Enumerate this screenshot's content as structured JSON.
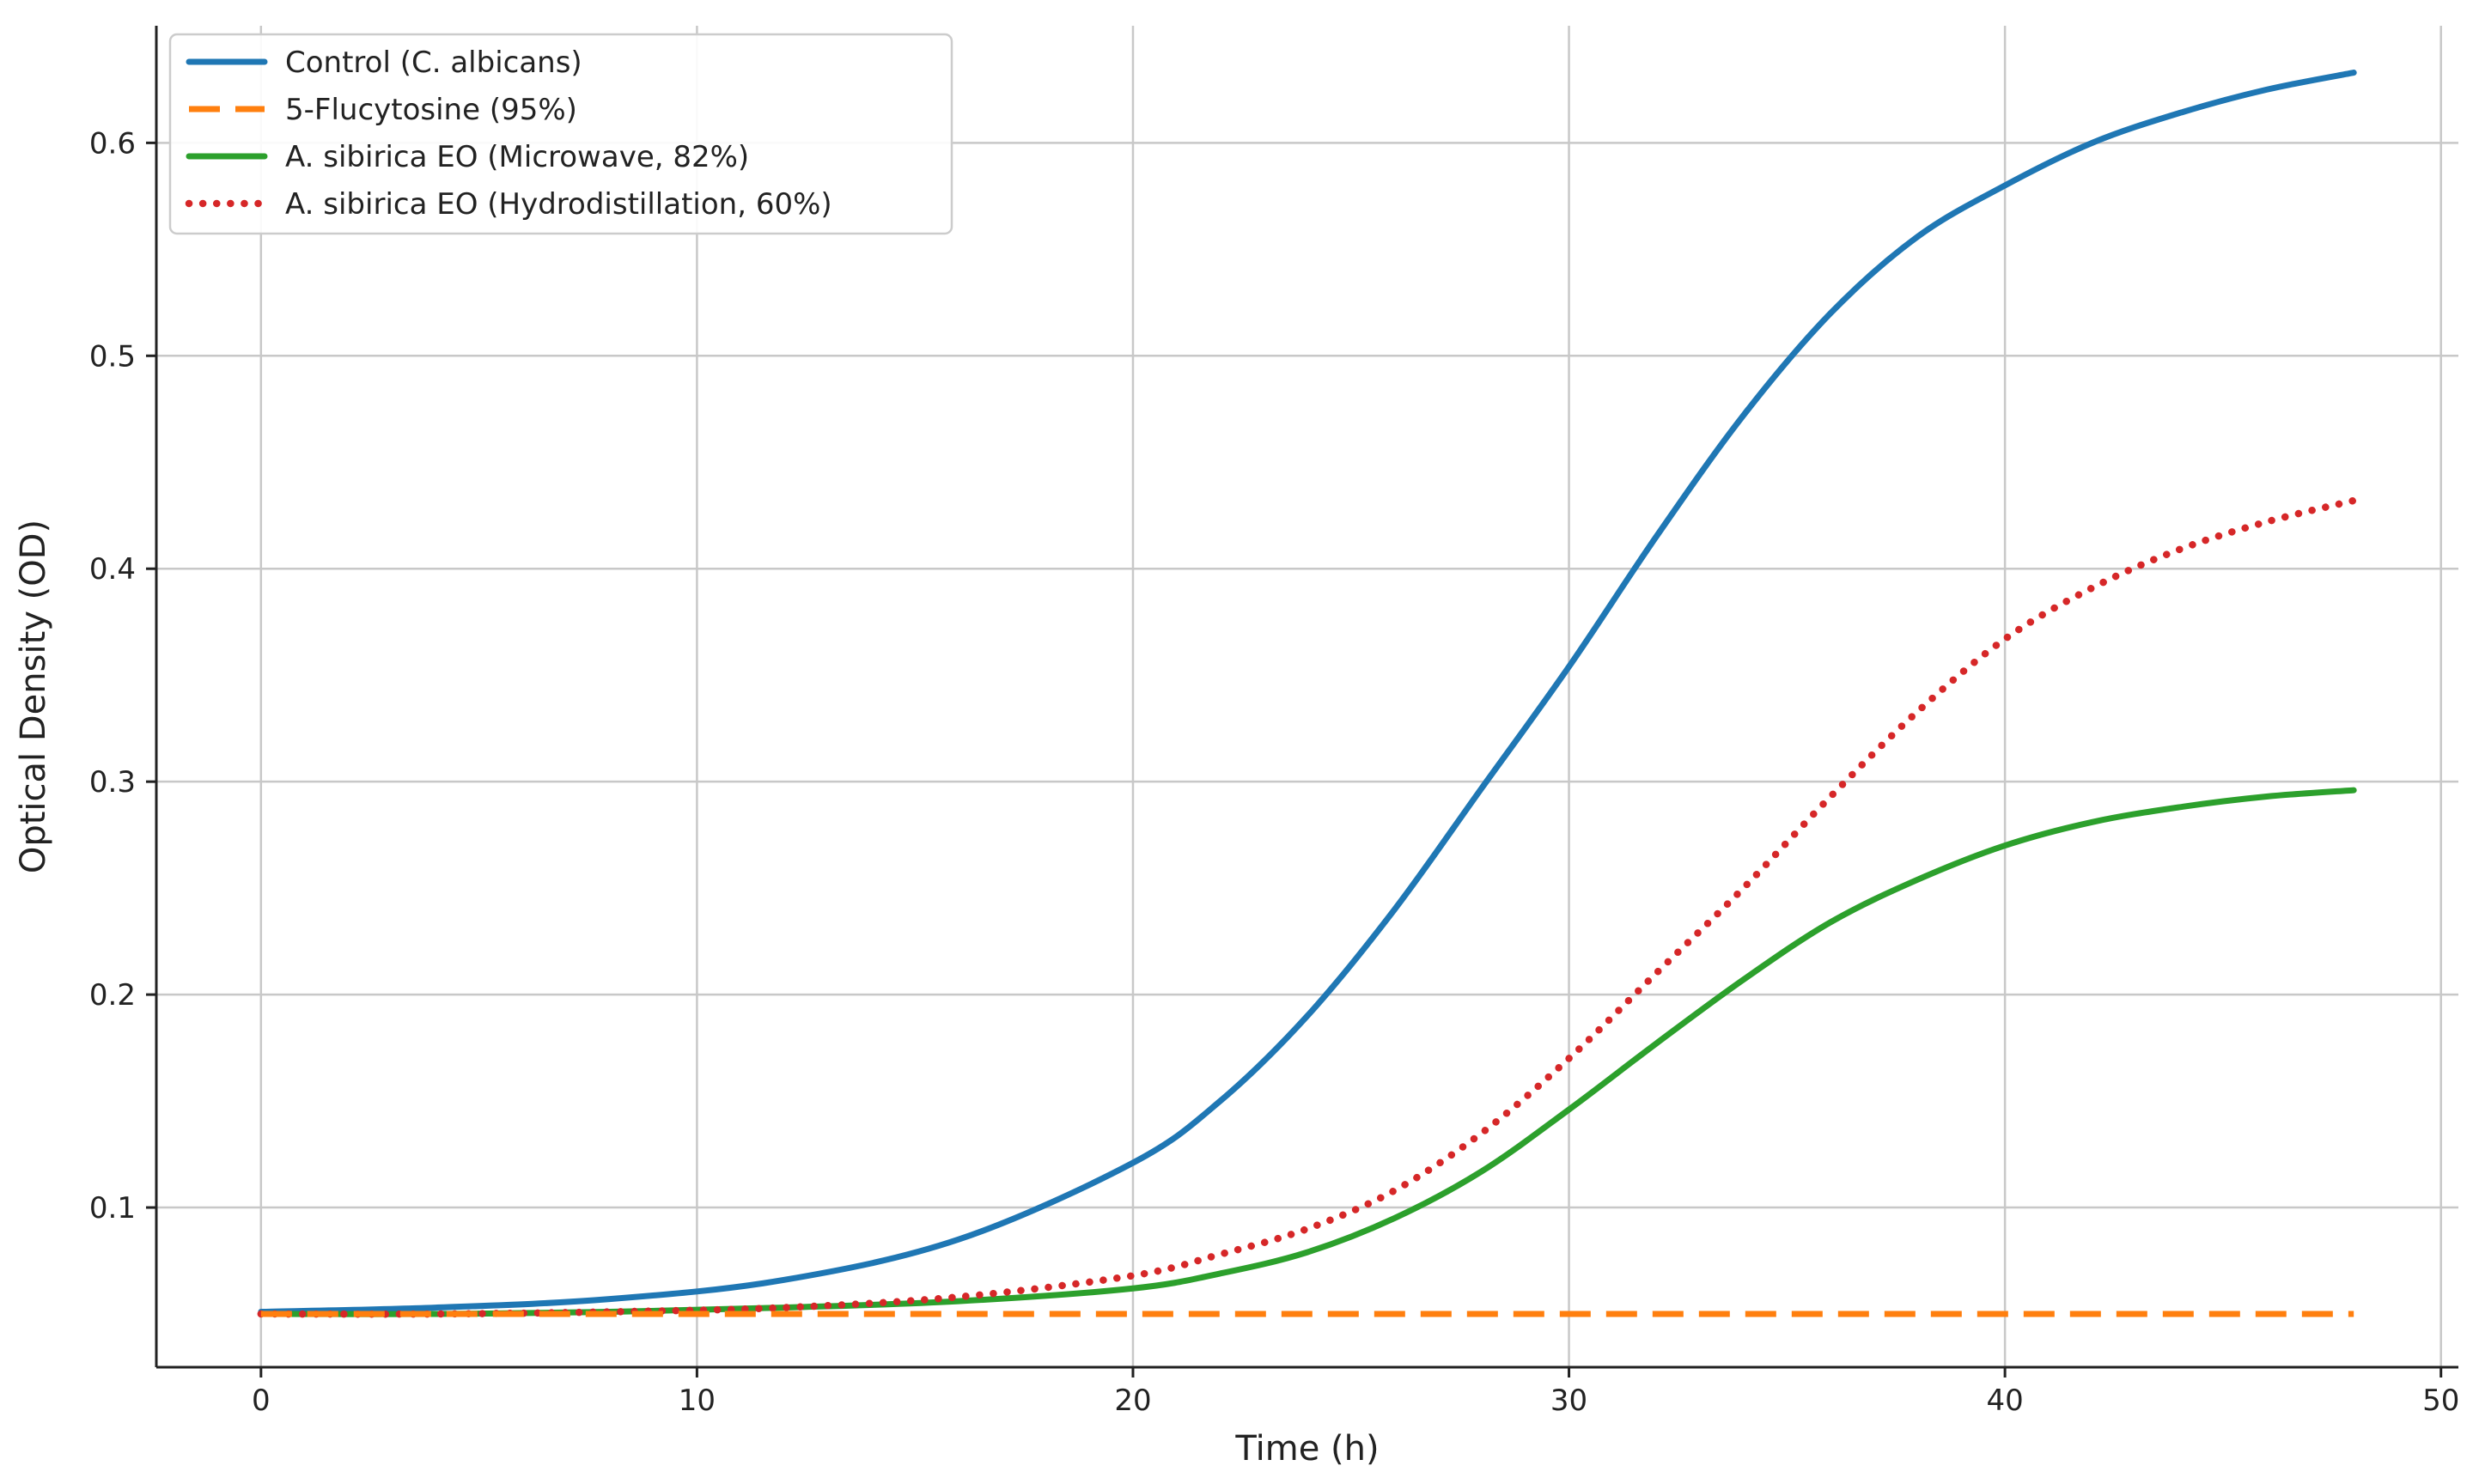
{
  "chart_data": {
    "type": "line",
    "xlabel": "Time (h)",
    "ylabel": "Optical Density (OD)",
    "xlim": [
      -2.4,
      50.4
    ],
    "ylim": [
      0.025,
      0.655
    ],
    "xticks": [
      0,
      10,
      20,
      30,
      40,
      50
    ],
    "yticks": [
      0.1,
      0.2,
      0.3,
      0.4,
      0.5,
      0.6
    ],
    "grid": true,
    "legend_position": "top-left",
    "x": [
      0,
      4,
      8,
      12,
      16,
      20,
      22,
      24,
      26,
      28,
      30,
      32,
      34,
      36,
      38,
      40,
      42,
      44,
      46,
      48
    ],
    "series": [
      {
        "name": "Control (C. albicans)",
        "color": "#1f77b4",
        "style": "solid",
        "values": [
          0.051,
          0.053,
          0.057,
          0.066,
          0.085,
          0.121,
          0.15,
          0.19,
          0.24,
          0.297,
          0.354,
          0.415,
          0.472,
          0.52,
          0.556,
          0.58,
          0.6,
          0.614,
          0.625,
          0.633
        ]
      },
      {
        "name": "5-Flucytosine (95%)",
        "color": "#ff7f0e",
        "style": "dashed",
        "values": [
          0.05,
          0.05,
          0.05,
          0.05,
          0.05,
          0.05,
          0.05,
          0.05,
          0.05,
          0.05,
          0.05,
          0.05,
          0.05,
          0.05,
          0.05,
          0.05,
          0.05,
          0.05,
          0.05,
          0.05
        ]
      },
      {
        "name": "A. sibirica EO (Microwave, 82%)",
        "color": "#2ca02c",
        "style": "solid",
        "values": [
          0.05,
          0.05,
          0.051,
          0.053,
          0.056,
          0.062,
          0.069,
          0.079,
          0.095,
          0.117,
          0.146,
          0.177,
          0.207,
          0.234,
          0.254,
          0.27,
          0.281,
          0.288,
          0.293,
          0.296
        ]
      },
      {
        "name": "A. sibirica EO (Hydrodistillation, 60%)",
        "color": "#d62728",
        "style": "dotted",
        "values": [
          0.05,
          0.05,
          0.051,
          0.053,
          0.058,
          0.068,
          0.078,
          0.09,
          0.108,
          0.135,
          0.17,
          0.21,
          0.25,
          0.293,
          0.333,
          0.367,
          0.391,
          0.409,
          0.422,
          0.432
        ]
      }
    ]
  }
}
